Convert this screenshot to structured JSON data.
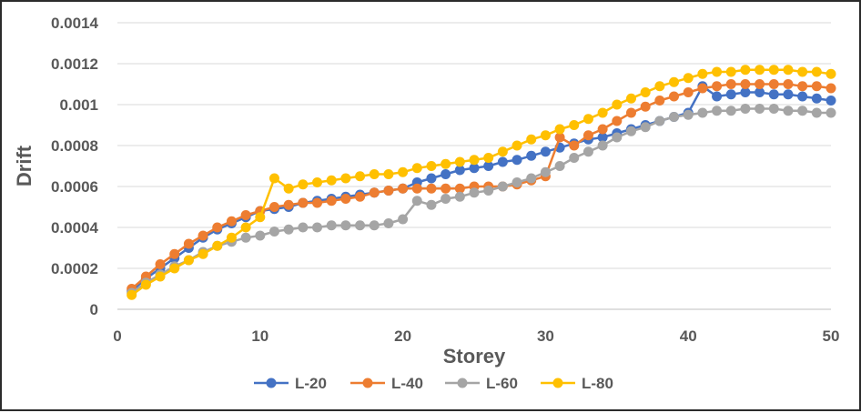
{
  "chart_data": {
    "type": "line",
    "title": "",
    "xlabel": "Storey",
    "ylabel": "Drift",
    "xlim": [
      0,
      50
    ],
    "ylim": [
      0,
      0.0014
    ],
    "x_ticks": [
      "0",
      "10",
      "20",
      "30",
      "40",
      "50"
    ],
    "y_ticks": [
      "0",
      "0.0002",
      "0.0004",
      "0.0006",
      "0.0008",
      "0.001",
      "0.0012",
      "0.0014"
    ],
    "grid": "horizontal",
    "legend_position": "bottom",
    "x": [
      1,
      2,
      3,
      4,
      5,
      6,
      7,
      8,
      9,
      10,
      11,
      12,
      13,
      14,
      15,
      16,
      17,
      18,
      19,
      20,
      21,
      22,
      23,
      24,
      25,
      26,
      27,
      28,
      29,
      30,
      31,
      32,
      33,
      34,
      35,
      36,
      37,
      38,
      39,
      40,
      41,
      42,
      43,
      44,
      45,
      46,
      47,
      48,
      49,
      50
    ],
    "series": [
      {
        "name": "L-20",
        "color": "#4472C4",
        "values": [
          9e-05,
          0.00015,
          0.0002,
          0.00025,
          0.0003,
          0.00035,
          0.00039,
          0.00042,
          0.00045,
          0.00048,
          0.00049,
          0.0005,
          0.00052,
          0.00053,
          0.00054,
          0.00055,
          0.00056,
          0.00057,
          0.00058,
          0.00059,
          0.00062,
          0.00064,
          0.00066,
          0.00068,
          0.00069,
          0.0007,
          0.00072,
          0.00073,
          0.00075,
          0.00077,
          0.00079,
          0.00081,
          0.00083,
          0.00084,
          0.00086,
          0.00088,
          0.0009,
          0.00092,
          0.00094,
          0.00096,
          0.00109,
          0.00104,
          0.00105,
          0.00106,
          0.00106,
          0.00105,
          0.00105,
          0.00104,
          0.00103,
          0.00102
        ]
      },
      {
        "name": "L-40",
        "color": "#ED7D31",
        "values": [
          0.0001,
          0.00016,
          0.00022,
          0.00027,
          0.00032,
          0.00036,
          0.0004,
          0.00043,
          0.00046,
          0.00048,
          0.0005,
          0.00051,
          0.00052,
          0.00052,
          0.00053,
          0.00054,
          0.00055,
          0.00057,
          0.00058,
          0.00059,
          0.00059,
          0.00059,
          0.00059,
          0.00059,
          0.0006,
          0.0006,
          0.0006,
          0.00061,
          0.00063,
          0.00065,
          0.00084,
          0.0008,
          0.00085,
          0.00088,
          0.00092,
          0.00096,
          0.00099,
          0.00102,
          0.00104,
          0.00106,
          0.00108,
          0.00109,
          0.0011,
          0.0011,
          0.0011,
          0.0011,
          0.0011,
          0.00109,
          0.00109,
          0.00108
        ]
      },
      {
        "name": "L-60",
        "color": "#A5A5A5",
        "values": [
          8e-05,
          0.00013,
          0.00017,
          0.00021,
          0.00024,
          0.00028,
          0.00031,
          0.00033,
          0.00035,
          0.00036,
          0.00038,
          0.00039,
          0.0004,
          0.0004,
          0.00041,
          0.00041,
          0.00041,
          0.00041,
          0.00042,
          0.00044,
          0.00053,
          0.00051,
          0.00054,
          0.00055,
          0.00057,
          0.00058,
          0.0006,
          0.00062,
          0.00064,
          0.00067,
          0.0007,
          0.00074,
          0.00077,
          0.0008,
          0.00084,
          0.00087,
          0.00089,
          0.00092,
          0.00094,
          0.00095,
          0.00096,
          0.00097,
          0.00097,
          0.00098,
          0.00098,
          0.00098,
          0.00097,
          0.00097,
          0.00096,
          0.00096
        ]
      },
      {
        "name": "L-80",
        "color": "#FFC000",
        "values": [
          7e-05,
          0.00012,
          0.00016,
          0.0002,
          0.00024,
          0.00027,
          0.00031,
          0.00035,
          0.0004,
          0.00045,
          0.00064,
          0.00059,
          0.00061,
          0.00062,
          0.00063,
          0.00064,
          0.00065,
          0.00066,
          0.00066,
          0.00067,
          0.00069,
          0.0007,
          0.00071,
          0.00072,
          0.00073,
          0.00074,
          0.00077,
          0.0008,
          0.00083,
          0.00085,
          0.00088,
          0.0009,
          0.00093,
          0.00096,
          0.001,
          0.00103,
          0.00106,
          0.00109,
          0.00111,
          0.00113,
          0.00115,
          0.00116,
          0.00116,
          0.00117,
          0.00117,
          0.00117,
          0.00117,
          0.00116,
          0.00116,
          0.00115
        ]
      }
    ]
  }
}
